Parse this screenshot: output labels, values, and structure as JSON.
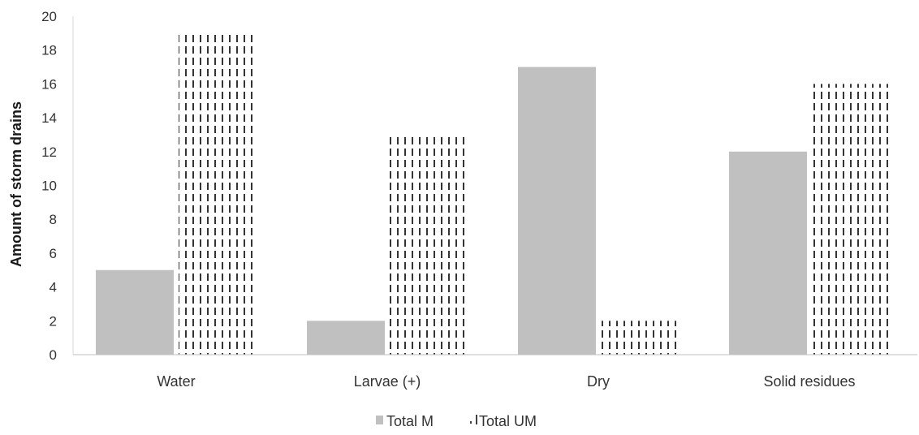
{
  "chart_data": {
    "type": "bar",
    "categories": [
      "Water",
      "Larvae (+)",
      "Dry",
      "Solid residues"
    ],
    "series": [
      {
        "name": "Total M",
        "values": [
          5,
          2,
          17,
          12
        ],
        "color": "#c0c0c0",
        "pattern": "solid"
      },
      {
        "name": "Total UM",
        "values": [
          19,
          13,
          2,
          16
        ],
        "color": "#000000",
        "pattern": "dashed-vertical"
      }
    ],
    "ylabel": "Amount of storm drains",
    "xlabel": "",
    "ylim": [
      0,
      20
    ],
    "yticks": [
      0,
      2,
      4,
      6,
      8,
      10,
      12,
      14,
      16,
      18,
      20
    ],
    "grid": false,
    "legend_position": "bottom"
  }
}
